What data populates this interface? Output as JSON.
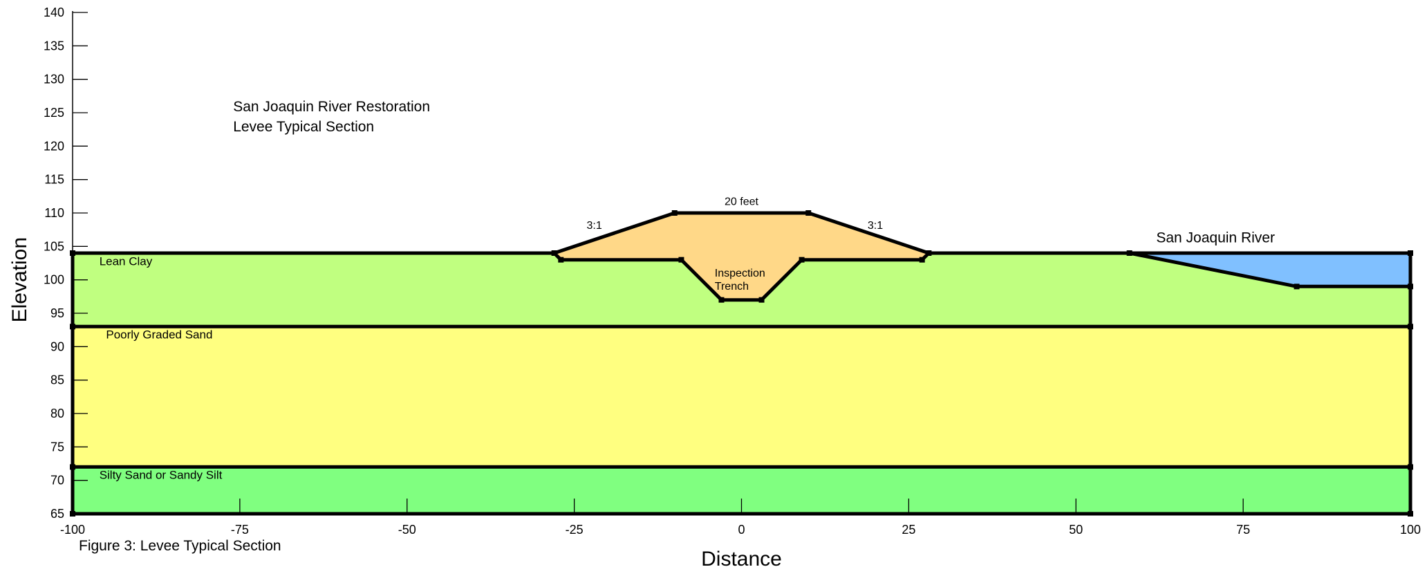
{
  "chart_data": {
    "type": "area",
    "title_lines": [
      "San Joaquin River Restoration",
      "Levee Typical Section"
    ],
    "caption": "Figure 3: Levee Typical Section",
    "xlabel": "Distance",
    "ylabel": "Elevation",
    "xlim": [
      -100,
      100
    ],
    "ylim": [
      65,
      140
    ],
    "x_ticks": [
      -100,
      -75,
      -50,
      -25,
      0,
      25,
      50,
      75,
      100
    ],
    "y_ticks": [
      65,
      70,
      75,
      80,
      85,
      90,
      95,
      100,
      105,
      110,
      115,
      120,
      125,
      130,
      135,
      140
    ],
    "grid": false,
    "regions": [
      {
        "id": "silty-sand",
        "label": "Silty Sand or Sandy Silt",
        "color": "#80ff80",
        "polygon": [
          [
            -100,
            65
          ],
          [
            100,
            65
          ],
          [
            100,
            72
          ],
          [
            -100,
            72
          ]
        ],
        "label_at": [
          -96,
          70.2
        ]
      },
      {
        "id": "poorly-graded-sand",
        "label": "Poorly Graded Sand",
        "color": "#ffff80",
        "polygon": [
          [
            -100,
            72
          ],
          [
            100,
            72
          ],
          [
            100,
            93
          ],
          [
            -100,
            93
          ]
        ],
        "label_at": [
          -95,
          91.2
        ]
      },
      {
        "id": "lean-clay",
        "label": "Lean Clay",
        "color": "#c0ff80",
        "polygon": [
          [
            -100,
            93
          ],
          [
            100,
            93
          ],
          [
            100,
            99
          ],
          [
            83,
            99
          ],
          [
            58,
            104
          ],
          [
            28,
            104
          ],
          [
            27,
            103
          ],
          [
            9,
            103
          ],
          [
            3,
            97
          ],
          [
            -3,
            97
          ],
          [
            -9,
            103
          ],
          [
            -27,
            103
          ],
          [
            -28,
            104
          ],
          [
            -100,
            104
          ]
        ],
        "label_at": [
          -96,
          102.2
        ]
      },
      {
        "id": "levee-fill",
        "label": "",
        "color": "#ffd888",
        "polygon": [
          [
            -28,
            104
          ],
          [
            -10,
            110
          ],
          [
            10,
            110
          ],
          [
            28,
            104
          ],
          [
            27,
            103
          ],
          [
            9,
            103
          ],
          [
            3,
            97
          ],
          [
            -3,
            97
          ],
          [
            -9,
            103
          ],
          [
            -27,
            103
          ]
        ],
        "label_at": null
      },
      {
        "id": "river-water",
        "label": "",
        "color": "#80c0ff",
        "polygon": [
          [
            58,
            104
          ],
          [
            100,
            104
          ],
          [
            100,
            99
          ],
          [
            83,
            99
          ]
        ],
        "label_at": null
      }
    ],
    "boundaries": [
      [
        [
          -100,
          104
        ],
        [
          -28,
          104
        ],
        [
          -10,
          110
        ],
        [
          10,
          110
        ],
        [
          28,
          104
        ],
        [
          58,
          104
        ],
        [
          100,
          104
        ]
      ],
      [
        [
          -100,
          93
        ],
        [
          100,
          93
        ]
      ],
      [
        [
          -100,
          72
        ],
        [
          100,
          72
        ]
      ],
      [
        [
          -100,
          65
        ],
        [
          100,
          65
        ]
      ],
      [
        [
          -100,
          65
        ],
        [
          -100,
          104
        ]
      ],
      [
        [
          100,
          65
        ],
        [
          100,
          104
        ]
      ],
      [
        [
          -28,
          104
        ],
        [
          -27,
          103
        ],
        [
          -9,
          103
        ],
        [
          -3,
          97
        ],
        [
          3,
          97
        ],
        [
          9,
          103
        ],
        [
          27,
          103
        ],
        [
          28,
          104
        ]
      ],
      [
        [
          58,
          104
        ],
        [
          83,
          99
        ],
        [
          100,
          99
        ]
      ]
    ],
    "vertices": [
      [
        -100,
        104
      ],
      [
        -100,
        93
      ],
      [
        -100,
        72
      ],
      [
        -100,
        65
      ],
      [
        100,
        104
      ],
      [
        100,
        99
      ],
      [
        100,
        93
      ],
      [
        100,
        72
      ],
      [
        100,
        65
      ],
      [
        -28,
        104
      ],
      [
        -27,
        103
      ],
      [
        -10,
        110
      ],
      [
        10,
        110
      ],
      [
        28,
        104
      ],
      [
        27,
        103
      ],
      [
        -9,
        103
      ],
      [
        -3,
        97
      ],
      [
        3,
        97
      ],
      [
        9,
        103
      ],
      [
        58,
        104
      ],
      [
        83,
        99
      ]
    ],
    "annotations": [
      {
        "id": "crest-width",
        "text": "20 feet",
        "at": [
          0,
          111.2
        ],
        "anchor": "middle"
      },
      {
        "id": "slope-left",
        "text": "3:1",
        "at": [
          -22,
          107.6
        ],
        "anchor": "middle"
      },
      {
        "id": "slope-right",
        "text": "3:1",
        "at": [
          20,
          107.6
        ],
        "anchor": "middle"
      },
      {
        "id": "inspection",
        "text": "Inspection",
        "at": [
          -4,
          100.5
        ],
        "anchor": "start"
      },
      {
        "id": "trench",
        "text": "Trench",
        "at": [
          -4,
          98.5
        ],
        "anchor": "start"
      },
      {
        "id": "river",
        "text": "San Joaquin River",
        "at": [
          62,
          105.6
        ],
        "anchor": "start"
      }
    ],
    "title_at": [
      -76,
      125
    ],
    "colors": {
      "line": "#000000",
      "silty_sand": "#80ff80",
      "poorly_graded_sand": "#ffff80",
      "lean_clay": "#c0ff80",
      "levee_fill": "#ffd888",
      "water": "#80c0ff"
    }
  }
}
